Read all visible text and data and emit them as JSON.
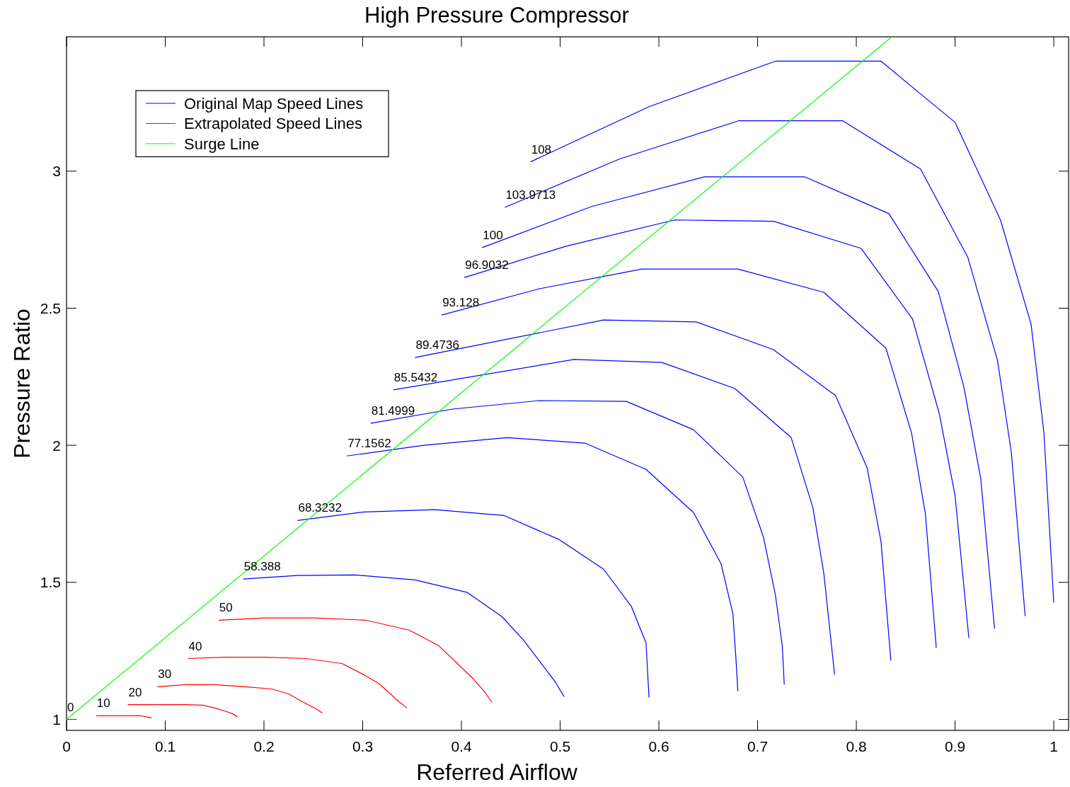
{
  "chart_data": {
    "type": "line",
    "title": "High Pressure Compressor",
    "xlabel": "Referred Airflow",
    "ylabel": "Pressure Ratio",
    "xlim": [
      0,
      1.015
    ],
    "ylim": [
      0.96,
      3.49
    ],
    "xticks": [
      0,
      0.1,
      0.2,
      0.3,
      0.4,
      0.5,
      0.6,
      0.7,
      0.8,
      0.9,
      1
    ],
    "yticks": [
      1,
      1.5,
      2,
      2.5,
      3
    ],
    "grid": false,
    "legend": "top left",
    "marker": "none",
    "line_style": "solid",
    "series": [
      {
        "name": "Original Map Speed Lines",
        "color": "#0000ff",
        "x": [
          0.47,
          0.59,
          0.718,
          0.825,
          0.9,
          0.946,
          0.977,
          0.99,
          1.0
        ],
        "values": [
          3.034,
          3.235,
          3.401,
          3.401,
          3.178,
          2.822,
          2.442,
          2.047,
          1.426
        ]
      },
      {
        "color": "#0000ff",
        "x": [
          0.444,
          0.56,
          0.681,
          0.786,
          0.865,
          0.913,
          0.943,
          0.957,
          0.971
        ],
        "values": [
          2.868,
          3.044,
          3.184,
          3.184,
          3.008,
          2.685,
          2.31,
          1.974,
          1.377
        ]
      },
      {
        "color": "#0000ff",
        "x": [
          0.421,
          0.532,
          0.646,
          0.748,
          0.833,
          0.883,
          0.909,
          0.926,
          0.94
        ],
        "values": [
          2.721,
          2.871,
          2.979,
          2.979,
          2.845,
          2.561,
          2.212,
          1.879,
          1.331
        ]
      },
      {
        "color": "#0000ff",
        "x": [
          0.403,
          0.506,
          0.616,
          0.716,
          0.805,
          0.857,
          0.884,
          0.9,
          0.914
        ],
        "values": [
          2.612,
          2.726,
          2.822,
          2.817,
          2.718,
          2.46,
          2.116,
          1.817,
          1.297
        ]
      },
      {
        "color": "#0000ff",
        "x": [
          0.38,
          0.479,
          0.583,
          0.68,
          0.767,
          0.83,
          0.856,
          0.87,
          0.881
        ],
        "values": [
          2.475,
          2.571,
          2.643,
          2.643,
          2.558,
          2.354,
          2.044,
          1.749,
          1.261
        ]
      },
      {
        "color": "#0000ff",
        "x": [
          0.353,
          0.544,
          0.638,
          0.716,
          0.779,
          0.811,
          0.825,
          0.835
        ],
        "values": [
          2.32,
          2.457,
          2.45,
          2.349,
          2.181,
          1.917,
          1.649,
          1.214
        ]
      },
      {
        "color": "#0000ff",
        "x": [
          0.331,
          0.514,
          0.603,
          0.677,
          0.734,
          0.756,
          0.767,
          0.778
        ],
        "values": [
          2.202,
          2.313,
          2.302,
          2.207,
          2.028,
          1.773,
          1.535,
          1.163
        ]
      },
      {
        "color": "#0000ff",
        "x": [
          0.308,
          0.391,
          0.479,
          0.567,
          0.635,
          0.685,
          0.706,
          0.718,
          0.725,
          0.727
        ],
        "values": [
          2.08,
          2.132,
          2.163,
          2.16,
          2.057,
          1.884,
          1.664,
          1.455,
          1.269,
          1.127
        ]
      },
      {
        "color": "#0000ff",
        "x": [
          0.284,
          0.362,
          0.446,
          0.525,
          0.587,
          0.635,
          0.663,
          0.675,
          0.678,
          0.68
        ],
        "values": [
          1.961,
          2.0,
          2.028,
          2.008,
          1.912,
          1.755,
          1.568,
          1.385,
          1.225,
          1.103
        ]
      },
      {
        "color": "#0000ff",
        "x": [
          0.234,
          0.302,
          0.373,
          0.443,
          0.499,
          0.544,
          0.572,
          0.587,
          0.59
        ],
        "values": [
          1.726,
          1.757,
          1.765,
          1.744,
          1.656,
          1.548,
          1.413,
          1.279,
          1.08
        ]
      },
      {
        "color": "#0000ff",
        "x": [
          0.179,
          0.234,
          0.292,
          0.353,
          0.406,
          0.441,
          0.463,
          0.495,
          0.504
        ],
        "values": [
          1.512,
          1.525,
          1.527,
          1.509,
          1.463,
          1.375,
          1.289,
          1.137,
          1.083
        ]
      },
      {
        "name": "Extrapolated Speed Lines",
        "color": "#ff0000",
        "x": [
          0.154,
          0.201,
          0.251,
          0.303,
          0.347,
          0.377,
          0.41,
          0.423,
          0.431
        ],
        "values": [
          1.362,
          1.37,
          1.37,
          1.362,
          1.326,
          1.269,
          1.155,
          1.103,
          1.062
        ]
      },
      {
        "color": "#ff0000",
        "x": [
          0.123,
          0.16,
          0.201,
          0.243,
          0.279,
          0.3,
          0.317,
          0.336,
          0.345
        ],
        "values": [
          1.222,
          1.227,
          1.227,
          1.222,
          1.204,
          1.165,
          1.129,
          1.067,
          1.041
        ]
      },
      {
        "color": "#ff0000",
        "x": [
          0.092,
          0.122,
          0.149,
          0.181,
          0.208,
          0.225,
          0.242,
          0.254,
          0.259
        ],
        "values": [
          1.119,
          1.127,
          1.127,
          1.119,
          1.111,
          1.093,
          1.059,
          1.036,
          1.023
        ]
      },
      {
        "color": "#ff0000",
        "x": [
          0.062,
          0.12,
          0.138,
          0.151,
          0.16,
          0.168,
          0.173
        ],
        "values": [
          1.054,
          1.054,
          1.052,
          1.041,
          1.031,
          1.021,
          1.01
        ]
      },
      {
        "color": "#ff0000",
        "x": [
          0.03,
          0.075,
          0.08,
          0.083,
          0.086
        ],
        "values": [
          1.013,
          1.013,
          1.01,
          1.008,
          1.005
        ]
      },
      {
        "color": "#ff0000",
        "x": [
          0,
          0.009
        ],
        "values": [
          1,
          1
        ]
      },
      {
        "name": "Surge Line",
        "color": "#00ff00",
        "x": [
          0,
          0.836
        ],
        "values": [
          1,
          3.49
        ]
      }
    ],
    "annotations": [
      {
        "text": "108",
        "x": 0.47,
        "y": 3.034
      },
      {
        "text": "103.9713",
        "x": 0.444,
        "y": 2.868
      },
      {
        "text": "100",
        "x": 0.421,
        "y": 2.721
      },
      {
        "text": "96.9032",
        "x": 0.403,
        "y": 2.612
      },
      {
        "text": "93.128",
        "x": 0.38,
        "y": 2.475
      },
      {
        "text": "89.4736",
        "x": 0.353,
        "y": 2.32
      },
      {
        "text": "85.5432",
        "x": 0.331,
        "y": 2.202
      },
      {
        "text": "81.4999",
        "x": 0.308,
        "y": 2.08
      },
      {
        "text": "77.1562",
        "x": 0.284,
        "y": 1.961
      },
      {
        "text": "68.3232",
        "x": 0.234,
        "y": 1.726
      },
      {
        "text": "58.388",
        "x": 0.179,
        "y": 1.512
      },
      {
        "text": "50",
        "x": 0.154,
        "y": 1.362
      },
      {
        "text": "40",
        "x": 0.123,
        "y": 1.222
      },
      {
        "text": "30",
        "x": 0.092,
        "y": 1.119
      },
      {
        "text": "20",
        "x": 0.062,
        "y": 1.054
      },
      {
        "text": "10",
        "x": 0.03,
        "y": 1.013
      },
      {
        "text": "0",
        "x": 0,
        "y": 1
      }
    ]
  }
}
